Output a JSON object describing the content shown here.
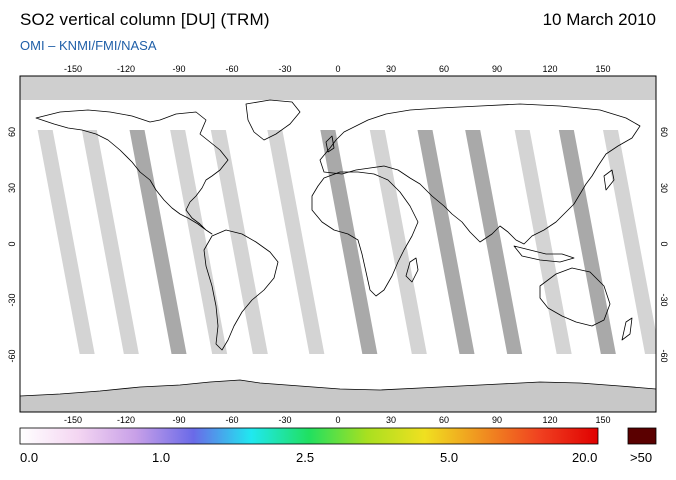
{
  "header": {
    "title": "SO2 vertical column [DU] (TRM)",
    "date": "10 March 2010",
    "subtitle": "OMI  –  KNMI/FMI/NASA"
  },
  "map": {
    "lon_ticks": [
      "-150",
      "-120",
      "-90",
      "-60",
      "-30",
      "0",
      "30",
      "60",
      "90",
      "120",
      "150"
    ],
    "lat_ticks": [
      "60",
      "30",
      "0",
      "-30",
      "-60"
    ],
    "colors": {
      "ocean": "#ffffff",
      "polar_missing": "#cfcfcf",
      "gap_light": "#d4d4d4",
      "gap_dark": "#a9a9a9",
      "coast": "#000000"
    }
  },
  "legend": {
    "labels": [
      "0.0",
      "1.0",
      "2.5",
      "5.0",
      "20.0",
      ">50"
    ],
    "colors": [
      "#ffffff",
      "#f4d6f2",
      "#c8a0e8",
      "#6a6ae8",
      "#20e8f0",
      "#20e060",
      "#a8e020",
      "#f0e020",
      "#f09020",
      "#f04020",
      "#e00000"
    ],
    "overflow_color": "#5a0000"
  }
}
